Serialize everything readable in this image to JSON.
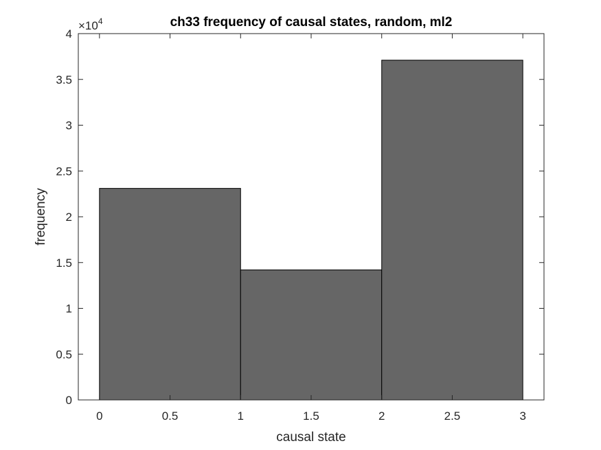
{
  "chart_data": {
    "type": "bar",
    "title": "ch33 frequency of causal states, random, ml2",
    "xlabel": "causal state",
    "ylabel": "frequency",
    "xlim": [
      -0.15,
      3.15
    ],
    "ylim": [
      0,
      40000
    ],
    "y_exponent_label": "×10",
    "y_exponent": "4",
    "bins": [
      {
        "x0": 0,
        "x1": 1,
        "value": 23100
      },
      {
        "x0": 1,
        "x1": 2,
        "value": 14200
      },
      {
        "x0": 2,
        "x1": 3,
        "value": 37100
      }
    ],
    "x_ticks": [
      {
        "value": 0,
        "label": "0"
      },
      {
        "value": 0.5,
        "label": "0.5"
      },
      {
        "value": 1,
        "label": "1"
      },
      {
        "value": 1.5,
        "label": "1.5"
      },
      {
        "value": 2,
        "label": "2"
      },
      {
        "value": 2.5,
        "label": "2.5"
      },
      {
        "value": 3,
        "label": "3"
      }
    ],
    "y_ticks": [
      {
        "value": 0,
        "label": "0"
      },
      {
        "value": 5000,
        "label": "0.5"
      },
      {
        "value": 10000,
        "label": "1"
      },
      {
        "value": 15000,
        "label": "1.5"
      },
      {
        "value": 20000,
        "label": "2"
      },
      {
        "value": 25000,
        "label": "2.5"
      },
      {
        "value": 30000,
        "label": "3"
      },
      {
        "value": 35000,
        "label": "3.5"
      },
      {
        "value": 40000,
        "label": "4"
      }
    ],
    "bar_color": "#666666",
    "edge_color": "#000000",
    "grid": false
  }
}
